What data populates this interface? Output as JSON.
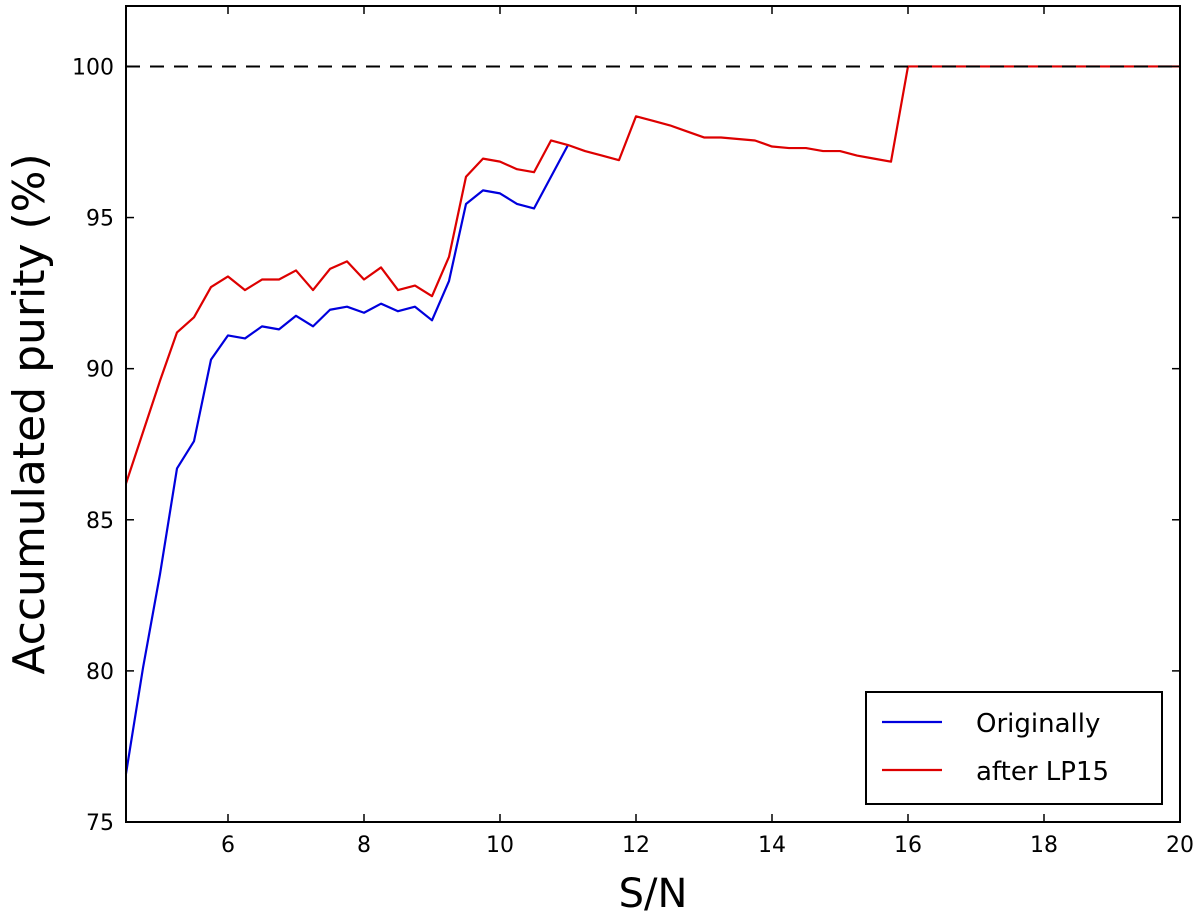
{
  "chart_data": {
    "type": "line",
    "title": "",
    "xlabel": "S/N",
    "ylabel": "Accumulated purity (%)",
    "xlim": [
      4.5,
      20
    ],
    "ylim": [
      75,
      102
    ],
    "xticks": [
      6,
      8,
      10,
      12,
      14,
      16,
      18,
      20
    ],
    "yticks": [
      75,
      80,
      85,
      90,
      95,
      100
    ],
    "grid": false,
    "legend_position": "bottom-right",
    "reference_line": {
      "y": 100,
      "style": "dashed",
      "color": "#000000"
    },
    "series": [
      {
        "name": "Originally",
        "color": "#0000dd",
        "x": [
          4.5,
          4.75,
          5.0,
          5.25,
          5.5,
          5.75,
          6.0,
          6.25,
          6.5,
          6.75,
          7.0,
          7.25,
          7.5,
          7.75,
          8.0,
          8.25,
          8.5,
          8.75,
          9.0,
          9.25,
          9.5,
          9.75,
          10.0,
          10.25,
          10.5,
          11.0
        ],
        "y": [
          76.6,
          80.1,
          83.2,
          86.7,
          87.6,
          90.3,
          91.1,
          91.0,
          91.4,
          91.3,
          91.75,
          91.4,
          91.95,
          92.05,
          91.85,
          92.15,
          91.9,
          92.05,
          91.6,
          92.9,
          95.45,
          95.9,
          95.8,
          95.45,
          95.3,
          97.4
        ]
      },
      {
        "name": "after LP15",
        "color": "#dd0000",
        "x": [
          4.5,
          4.75,
          5.0,
          5.25,
          5.5,
          5.75,
          6.0,
          6.25,
          6.5,
          6.75,
          7.0,
          7.25,
          7.5,
          7.75,
          8.0,
          8.25,
          8.5,
          8.75,
          9.0,
          9.25,
          9.5,
          9.75,
          10.0,
          10.25,
          10.5,
          10.75,
          11.0,
          11.25,
          11.5,
          11.75,
          12.0,
          12.25,
          12.5,
          12.75,
          13.0,
          13.25,
          13.5,
          13.75,
          14.0,
          14.25,
          14.5,
          14.75,
          15.0,
          15.25,
          15.5,
          15.75,
          16.0,
          20.0
        ],
        "y": [
          86.2,
          87.9,
          89.6,
          91.2,
          91.7,
          92.7,
          93.05,
          92.6,
          92.95,
          92.95,
          93.25,
          92.6,
          93.3,
          93.55,
          92.95,
          93.35,
          92.6,
          92.75,
          92.4,
          93.7,
          96.35,
          96.95,
          96.85,
          96.6,
          96.5,
          97.55,
          97.4,
          97.2,
          97.05,
          96.9,
          98.35,
          98.2,
          98.05,
          97.85,
          97.65,
          97.65,
          97.6,
          97.55,
          97.35,
          97.3,
          97.3,
          97.2,
          97.2,
          97.05,
          96.95,
          96.85,
          100.0,
          100.0
        ]
      }
    ]
  }
}
